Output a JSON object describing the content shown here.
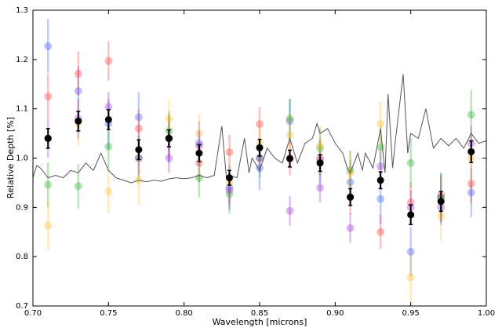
{
  "chart_data": {
    "type": "scatter",
    "xlabel": "Wavelength [microns]",
    "ylabel": "Relative Depth [%]",
    "xlim": [
      0.7,
      1.0
    ],
    "ylim": [
      0.7,
      1.3
    ],
    "xticks": [
      {
        "value": 0.7,
        "label": "0.70"
      },
      {
        "value": 0.75,
        "label": "0.75"
      },
      {
        "value": 0.8,
        "label": "0.80"
      },
      {
        "value": 0.85,
        "label": "0.85"
      },
      {
        "value": 0.9,
        "label": "0.90"
      },
      {
        "value": 0.95,
        "label": "0.95"
      },
      {
        "value": 1.0,
        "label": "1.00"
      }
    ],
    "yticks": [
      0.7,
      0.8,
      0.9,
      {
        "value": 1.0,
        "label": "1.0"
      },
      1.1,
      1.2,
      1.3
    ],
    "x": [
      0.71,
      0.73,
      0.75,
      0.77,
      0.79,
      0.81,
      0.83,
      0.85,
      0.87,
      0.89,
      0.91,
      0.93,
      0.95,
      0.97,
      0.99
    ],
    "series": [
      {
        "color": "#3355ff",
        "values": [
          1.227,
          1.136,
          1.07,
          1.083,
          1.04,
          1.03,
          0.94,
          0.98,
          1.075,
          0.995,
          0.951,
          0.917,
          0.81,
          0.92,
          0.93
        ],
        "errors": [
          0.055,
          0.05,
          0.05,
          0.05,
          0.05,
          0.045,
          0.045,
          0.045,
          0.045,
          0.045,
          0.045,
          0.05,
          0.05,
          0.05,
          0.05
        ]
      },
      {
        "color": "#ff3333",
        "values": [
          1.125,
          1.171,
          1.197,
          1.06,
          1.04,
          0.99,
          1.012,
          1.069,
          1.0,
          1.0,
          0.92,
          0.85,
          0.91,
          0.925,
          0.948
        ],
        "errors": [
          0.045,
          0.045,
          0.04,
          0.04,
          0.04,
          0.04,
          0.035,
          0.035,
          0.035,
          0.035,
          0.035,
          0.035,
          0.04,
          0.04,
          0.04
        ]
      },
      {
        "color": "#22aa22",
        "values": [
          0.946,
          0.943,
          1.023,
          1.0,
          1.055,
          0.96,
          0.927,
          1.0,
          1.08,
          1.02,
          0.975,
          1.022,
          0.99,
          0.92,
          1.088
        ],
        "errors": [
          0.045,
          0.045,
          0.045,
          0.045,
          0.04,
          0.04,
          0.04,
          0.04,
          0.04,
          0.04,
          0.04,
          0.045,
          0.05,
          0.05,
          0.05
        ]
      },
      {
        "color": "#ffbb22",
        "values": [
          0.863,
          1.07,
          0.932,
          0.955,
          1.08,
          1.05,
          0.95,
          1.03,
          1.047,
          1.025,
          0.97,
          1.07,
          0.758,
          0.882,
          1.0
        ],
        "errors": [
          0.05,
          0.045,
          0.045,
          0.05,
          0.04,
          0.04,
          0.04,
          0.04,
          0.04,
          0.04,
          0.045,
          0.045,
          0.05,
          0.05,
          0.05
        ]
      },
      {
        "color": "#9933cc",
        "values": [
          1.04,
          1.08,
          1.104,
          1.0,
          1.0,
          1.025,
          0.935,
          1.0,
          0.893,
          0.94,
          0.858,
          0.983,
          0.9,
          0.9,
          1.03
        ],
        "errors": [
          0.04,
          0.04,
          0.03,
          0.035,
          0.03,
          0.03,
          0.03,
          0.03,
          0.03,
          0.03,
          0.03,
          0.03,
          0.035,
          0.035,
          0.035
        ]
      },
      {
        "color": "#000000",
        "values": [
          1.04,
          1.075,
          1.078,
          1.017,
          1.04,
          1.01,
          0.96,
          1.021,
          0.999,
          0.99,
          0.921,
          0.955,
          0.885,
          0.912,
          1.013
        ],
        "errors": [
          0.02,
          0.02,
          0.02,
          0.02,
          0.017,
          0.017,
          0.015,
          0.017,
          0.017,
          0.017,
          0.017,
          0.017,
          0.02,
          0.02,
          0.022
        ]
      }
    ],
    "model": {
      "color": "#555555",
      "x": [
        0.7,
        0.7025,
        0.705,
        0.71,
        0.715,
        0.72,
        0.725,
        0.73,
        0.735,
        0.74,
        0.745,
        0.75,
        0.755,
        0.76,
        0.765,
        0.77,
        0.775,
        0.78,
        0.785,
        0.79,
        0.795,
        0.8,
        0.805,
        0.81,
        0.815,
        0.82,
        0.825,
        0.828,
        0.83,
        0.835,
        0.84,
        0.843,
        0.845,
        0.85,
        0.855,
        0.86,
        0.865,
        0.87,
        0.875,
        0.88,
        0.885,
        0.888,
        0.89,
        0.895,
        0.9,
        0.905,
        0.908,
        0.91,
        0.915,
        0.918,
        0.92,
        0.925,
        0.93,
        0.933,
        0.935,
        0.938,
        0.94,
        0.945,
        0.948,
        0.95,
        0.955,
        0.96,
        0.965,
        0.97,
        0.975,
        0.98,
        0.985,
        0.99,
        0.995,
        1.0
      ],
      "values": [
        0.96,
        0.985,
        0.98,
        0.96,
        0.965,
        0.96,
        0.975,
        0.97,
        0.99,
        0.975,
        1.01,
        0.975,
        0.96,
        0.955,
        0.95,
        0.955,
        0.952,
        0.955,
        0.953,
        0.958,
        0.96,
        0.958,
        0.96,
        0.965,
        0.96,
        0.965,
        1.065,
        0.96,
        0.965,
        0.96,
        1.04,
        0.97,
        1.0,
        0.975,
        1.02,
        1.0,
        0.99,
        1.04,
        0.99,
        1.03,
        1.04,
        1.07,
        1.05,
        1.06,
        1.03,
        1.01,
        0.98,
        0.97,
        1.01,
        0.975,
        1.01,
        0.98,
        1.06,
        0.97,
        1.13,
        0.98,
        1.04,
        1.17,
        1.01,
        1.05,
        1.04,
        1.1,
        1.02,
        1.04,
        1.025,
        1.04,
        1.02,
        1.05,
        1.03,
        1.035
      ]
    }
  }
}
